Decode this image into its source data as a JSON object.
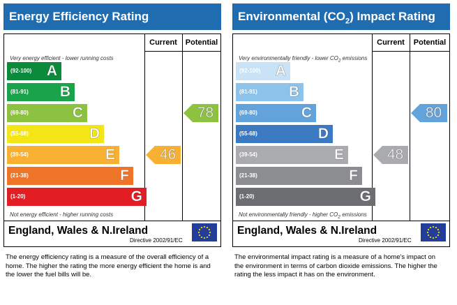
{
  "energy": {
    "title": "Energy Efficiency Rating",
    "current_header": "Current",
    "potential_header": "Potential",
    "top_note": "Very energy efficient - lower running costs",
    "bottom_note": "Not energy efficient - higher running costs",
    "bands": [
      {
        "range": "(92-100)",
        "letter": "A",
        "color": "#0c8a3c"
      },
      {
        "range": "(81-91)",
        "letter": "B",
        "color": "#19a34a"
      },
      {
        "range": "(69-80)",
        "letter": "C",
        "color": "#8cc23f"
      },
      {
        "range": "(55-68)",
        "letter": "D",
        "color": "#f3e516"
      },
      {
        "range": "(39-54)",
        "letter": "E",
        "color": "#f7b032"
      },
      {
        "range": "(21-38)",
        "letter": "F",
        "color": "#ee7428"
      },
      {
        "range": "(1-20)",
        "letter": "G",
        "color": "#e31d24"
      }
    ],
    "current": {
      "value": "46",
      "color": "#f7b032"
    },
    "potential": {
      "value": "78",
      "color": "#8cc23f"
    },
    "region": "England, Wales & N.Ireland",
    "directive": "Directive 2002/91/EC",
    "description": "The energy efficiency rating is a measure of the overall efficiency of a home. The higher the rating the more energy efficient the home is and the lower the fuel bills will be."
  },
  "environment": {
    "title_before": "Environmental (CO",
    "title_sub": "2",
    "title_after": ") Impact Rating",
    "current_header": "Current",
    "potential_header": "Potential",
    "top_note_before": "Very environmentally friendly - lower CO",
    "top_note_sub": "2",
    "top_note_after": " emissions",
    "bottom_note_before": "Not environmentally friendly - higher CO",
    "bottom_note_sub": "2",
    "bottom_note_after": " emissions",
    "bands": [
      {
        "range": "(92-100)",
        "letter": "A",
        "color": "#c9e2f5"
      },
      {
        "range": "(81-91)",
        "letter": "B",
        "color": "#8dc2ea"
      },
      {
        "range": "(69-80)",
        "letter": "C",
        "color": "#62a3dc"
      },
      {
        "range": "(55-68)",
        "letter": "D",
        "color": "#3b79c1"
      },
      {
        "range": "(39-54)",
        "letter": "E",
        "color": "#a9abae"
      },
      {
        "range": "(21-38)",
        "letter": "F",
        "color": "#8b8d90"
      },
      {
        "range": "(1-20)",
        "letter": "G",
        "color": "#6d6e71"
      }
    ],
    "current": {
      "value": "48",
      "color": "#a9abae"
    },
    "potential": {
      "value": "80",
      "color": "#62a3dc"
    },
    "region": "England, Wales & N.Ireland",
    "directive": "Directive 2002/91/EC",
    "description": "The environmental impact rating is a measure of a home's impact on the environment in terms of carbon dioxide emissions. The higher the rating the less impact it has on the environment."
  }
}
